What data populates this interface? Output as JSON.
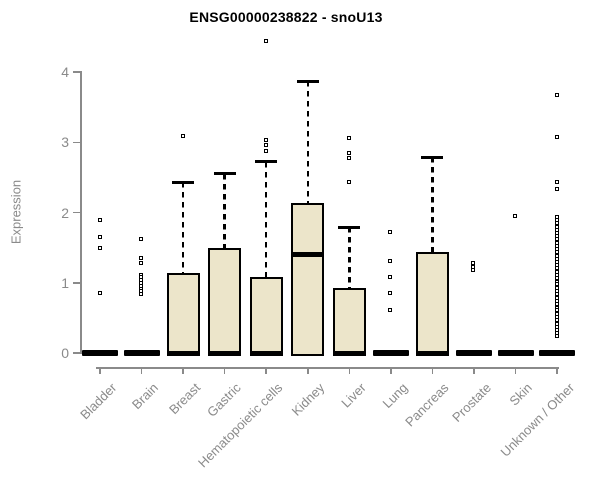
{
  "page": {
    "background": "#ffffff"
  },
  "chart_data": {
    "type": "boxplot",
    "title": "ENSG00000238822 - snoU13",
    "ylabel": "Expression",
    "xlabel": "",
    "ylim": [
      0,
      4
    ],
    "yticks": [
      0,
      1,
      2,
      3,
      4
    ],
    "grid": false,
    "legend": "none",
    "axis_color": "#8a8a8a",
    "box_fill": "#ece5ca",
    "box_border": "#000000",
    "median_color": "#000000",
    "categories": [
      "Bladder",
      "Brain",
      "Breast",
      "Gastric",
      "Hematopoietic cells",
      "Kidney",
      "Liver",
      "Lung",
      "Pancreas",
      "Prostate",
      "Skin",
      "Unknown / Other"
    ],
    "series": [
      {
        "label": "Bladder",
        "q1": 0,
        "median": 0,
        "q3": 0,
        "whisker_low": 0,
        "whisker_high": 0,
        "outliers": [
          1.89,
          1.64,
          1.49,
          0.84
        ]
      },
      {
        "label": "Brain",
        "q1": 0,
        "median": 0,
        "q3": 0,
        "whisker_low": 0,
        "whisker_high": 0,
        "outliers": [
          1.62,
          1.35,
          1.27,
          1.11,
          1.07,
          1.03,
          0.99,
          0.95,
          0.91,
          0.87,
          0.83
        ]
      },
      {
        "label": "Breast",
        "q1": 0,
        "median": 0,
        "q3": 1.14,
        "whisker_low": 0,
        "whisker_high": 2.43,
        "outliers": [
          3.08
        ]
      },
      {
        "label": "Gastric",
        "q1": 0,
        "median": 0,
        "q3": 1.5,
        "whisker_low": 0,
        "whisker_high": 2.55,
        "outliers": []
      },
      {
        "label": "Hematopoietic cells",
        "q1": 0,
        "median": 0,
        "q3": 1.08,
        "whisker_low": 0,
        "whisker_high": 2.72,
        "outliers": [
          4.43,
          3.03,
          2.95,
          2.87
        ]
      },
      {
        "label": "Kidney",
        "q1": 0,
        "median": 1.4,
        "q3": 2.13,
        "whisker_low": 0,
        "whisker_high": 3.87,
        "outliers": []
      },
      {
        "label": "Liver",
        "q1": 0,
        "median": 0,
        "q3": 0.93,
        "whisker_low": 0,
        "whisker_high": 1.79,
        "outliers": [
          3.06,
          2.84,
          2.77,
          2.42
        ]
      },
      {
        "label": "Lung",
        "q1": 0,
        "median": 0,
        "q3": 0,
        "whisker_low": 0,
        "whisker_high": 0,
        "outliers": [
          1.71,
          1.3,
          1.07,
          0.84,
          0.6
        ]
      },
      {
        "label": "Pancreas",
        "q1": 0,
        "median": 0,
        "q3": 1.44,
        "whisker_low": 0,
        "whisker_high": 2.79,
        "outliers": []
      },
      {
        "label": "Prostate",
        "q1": 0,
        "median": 0,
        "q3": 0,
        "whisker_low": 0,
        "whisker_high": 0,
        "outliers": [
          1.28,
          1.22,
          1.17
        ]
      },
      {
        "label": "Skin",
        "q1": 0,
        "median": 0,
        "q3": 0,
        "whisker_low": 0,
        "whisker_high": 0,
        "outliers": [
          1.94
        ]
      },
      {
        "label": "Unknown / Other",
        "q1": 0,
        "median": 0,
        "q3": 0,
        "whisker_low": 0,
        "whisker_high": 0,
        "outliers": [
          3.67,
          3.07,
          2.42,
          2.33,
          1.93,
          1.88,
          1.84,
          1.79,
          1.75,
          1.7,
          1.66,
          1.61,
          1.56,
          1.52,
          1.47,
          1.43,
          1.38,
          1.33,
          1.29,
          1.24,
          1.2,
          1.15,
          1.1,
          1.06,
          1.01,
          0.97,
          0.92,
          0.87,
          0.83,
          0.78,
          0.74,
          0.69,
          0.64,
          0.6,
          0.55,
          0.51,
          0.46,
          0.41,
          0.37,
          0.32,
          0.28,
          0.23
        ]
      }
    ]
  }
}
